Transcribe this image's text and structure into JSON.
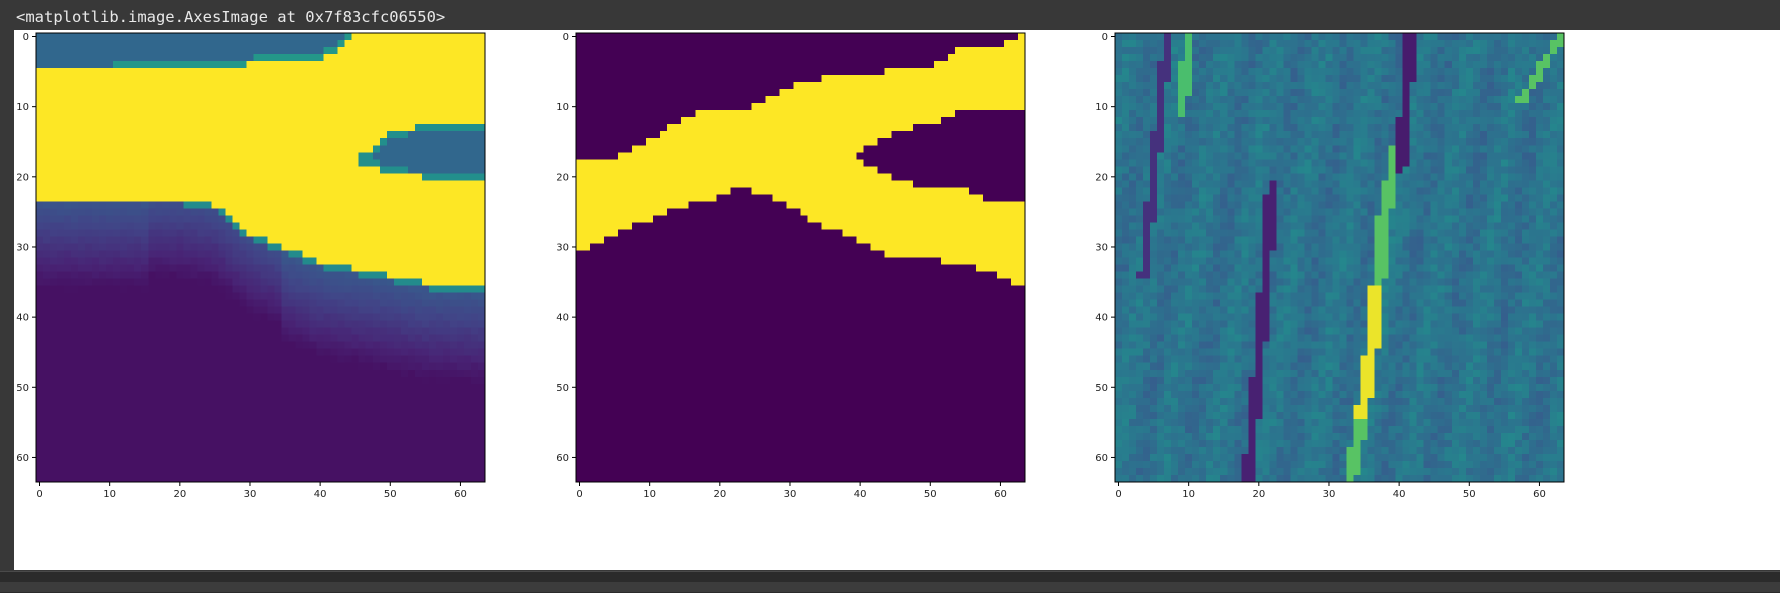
{
  "output": {
    "repr_text": "<matplotlib.image.AxesImage at 0x7f83cfc06550>"
  },
  "chart_data": [
    {
      "type": "heatmap",
      "title": "",
      "xlabel": "",
      "ylabel": "",
      "xlim": [
        -0.5,
        63.5
      ],
      "ylim": [
        63.5,
        -0.5
      ],
      "xticks": [
        0,
        10,
        20,
        30,
        40,
        50,
        60
      ],
      "yticks": [
        0,
        10,
        20,
        30,
        40,
        50,
        60
      ],
      "colormap": "viridis",
      "shape": [
        64,
        64
      ],
      "description_of_values": "continuous image; high values form a horizontal band between rows ~5 and ~23 that widens to the right, a low-value wedge enters from the right edge around rows 12-20, values decrease gradually toward the bottom"
    },
    {
      "type": "heatmap",
      "title": "",
      "xlabel": "",
      "ylabel": "",
      "xlim": [
        -0.5,
        63.5
      ],
      "ylim": [
        63.5,
        -0.5
      ],
      "xticks": [
        0,
        10,
        20,
        30,
        40,
        50,
        60
      ],
      "yticks": [
        0,
        10,
        20,
        30,
        40,
        50,
        60
      ],
      "colormap": "viridis",
      "shape": [
        64,
        64
      ],
      "binary_mask_column_ranges": {
        "x": [
          0,
          4,
          9,
          13,
          18,
          23,
          27,
          32,
          36,
          41,
          45,
          50,
          54,
          59,
          63
        ],
        "top_row": [
          18,
          18,
          16,
          13,
          11,
          11,
          9,
          7,
          6,
          6,
          5,
          5,
          2,
          2,
          0
        ],
        "bottom_row": [
          30,
          28,
          26,
          24,
          23,
          21,
          22,
          25,
          27,
          29,
          31,
          31,
          32,
          33,
          35
        ],
        "lower_gap": {
          "x": [
            40,
            45,
            50,
            55,
            59,
            63
          ],
          "top_row": [
            17,
            14,
            13,
            11,
            11,
            11
          ],
          "bottom_row": [
            17,
            20,
            21,
            21,
            23,
            23
          ]
        }
      }
    },
    {
      "type": "heatmap",
      "title": "",
      "xlabel": "",
      "ylabel": "",
      "xlim": [
        -0.5,
        63.5
      ],
      "ylim": [
        63.5,
        -0.5
      ],
      "xticks": [
        0,
        10,
        20,
        30,
        40,
        50,
        60
      ],
      "yticks": [
        0,
        10,
        20,
        30,
        40,
        50,
        60
      ],
      "colormap": "viridis",
      "shape": [
        64,
        64
      ],
      "description_of_values": "mid-range textured field with thin near-vertical dark and bright streaks; a bright yellow streak runs from about (33,63) up to (40,15); dark streaks near x=19-22 and x=41"
    }
  ],
  "colors": {
    "viridis_low": "#440154",
    "viridis_mid": "#21918c",
    "viridis_high": "#fde725",
    "background": "#383838",
    "figure_bg": "#ffffff"
  }
}
